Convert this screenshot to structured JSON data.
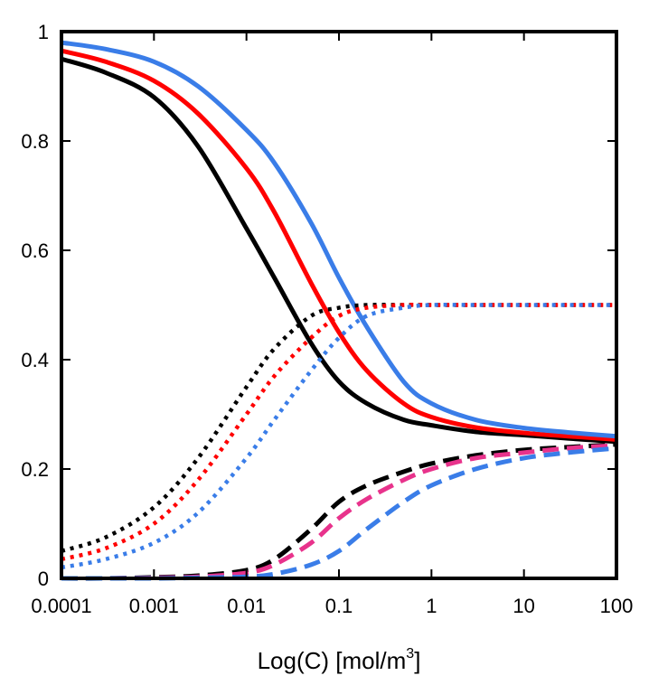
{
  "chart_data": {
    "type": "line",
    "title": "",
    "xlabel": "Log(C)  [mol/m",
    "xlabel_superscript": "3",
    "xlabel_suffix": "]",
    "ylabel": "",
    "x_scale": "log10",
    "xlim": [
      0.0001,
      100
    ],
    "ylim": [
      0,
      1
    ],
    "grid": false,
    "x_ticks": [
      0.0001,
      0.001,
      0.01,
      0.1,
      1,
      10,
      100
    ],
    "x_tick_labels": [
      "0.0001",
      "0.001",
      "0.01",
      "0.1",
      "1",
      "10",
      "100"
    ],
    "y_ticks": [
      0,
      0.2,
      0.4,
      0.6,
      0.8,
      1
    ],
    "y_tick_labels": [
      "0",
      "0.2",
      "0.4",
      "0.6",
      "0.8",
      "1"
    ],
    "x": [
      0.0001,
      0.0003,
      0.001,
      0.003,
      0.01,
      0.02,
      0.05,
      0.1,
      0.2,
      0.5,
      1,
      3,
      10,
      30,
      100
    ],
    "series": [
      {
        "name": "black-solid",
        "color": "#000000",
        "style": "solid",
        "values": [
          0.95,
          0.925,
          0.88,
          0.79,
          0.64,
          0.55,
          0.43,
          0.36,
          0.32,
          0.29,
          0.28,
          0.268,
          0.262,
          0.256,
          0.25
        ]
      },
      {
        "name": "red-solid",
        "color": "#ff0000",
        "style": "solid",
        "values": [
          0.965,
          0.945,
          0.91,
          0.85,
          0.75,
          0.67,
          0.54,
          0.45,
          0.38,
          0.32,
          0.295,
          0.276,
          0.266,
          0.26,
          0.254
        ]
      },
      {
        "name": "blue-solid",
        "color": "#3a7de8",
        "style": "solid",
        "values": [
          0.98,
          0.968,
          0.945,
          0.9,
          0.82,
          0.76,
          0.65,
          0.55,
          0.46,
          0.36,
          0.32,
          0.29,
          0.275,
          0.267,
          0.26
        ]
      },
      {
        "name": "black-dotted",
        "color": "#000000",
        "style": "dotted",
        "values": [
          0.05,
          0.075,
          0.13,
          0.22,
          0.35,
          0.42,
          0.48,
          0.495,
          0.5,
          0.5,
          0.5,
          0.5,
          0.5,
          0.5,
          0.5
        ]
      },
      {
        "name": "red-dotted",
        "color": "#ff0000",
        "style": "dotted",
        "values": [
          0.035,
          0.055,
          0.1,
          0.18,
          0.3,
          0.37,
          0.44,
          0.48,
          0.495,
          0.5,
          0.5,
          0.5,
          0.5,
          0.5,
          0.5
        ]
      },
      {
        "name": "blue-dotted",
        "color": "#3a7de8",
        "style": "dotted",
        "values": [
          0.02,
          0.035,
          0.065,
          0.12,
          0.22,
          0.29,
          0.38,
          0.44,
          0.48,
          0.495,
          0.5,
          0.5,
          0.5,
          0.5,
          0.5
        ]
      },
      {
        "name": "black-dashed",
        "color": "#000000",
        "style": "dashed",
        "values": [
          0,
          0,
          0.002,
          0.005,
          0.015,
          0.035,
          0.09,
          0.14,
          0.17,
          0.195,
          0.21,
          0.225,
          0.235,
          0.24,
          0.245
        ]
      },
      {
        "name": "magenta-dashed",
        "color": "#e8338c",
        "style": "dashed",
        "values": [
          0,
          0,
          0.001,
          0.003,
          0.01,
          0.025,
          0.065,
          0.11,
          0.145,
          0.18,
          0.2,
          0.22,
          0.23,
          0.238,
          0.243
        ]
      },
      {
        "name": "blue-dashed",
        "color": "#3a7de8",
        "style": "dashed",
        "values": [
          0,
          0,
          0,
          0.001,
          0.003,
          0.008,
          0.025,
          0.05,
          0.09,
          0.14,
          0.17,
          0.2,
          0.22,
          0.23,
          0.238
        ]
      }
    ]
  }
}
